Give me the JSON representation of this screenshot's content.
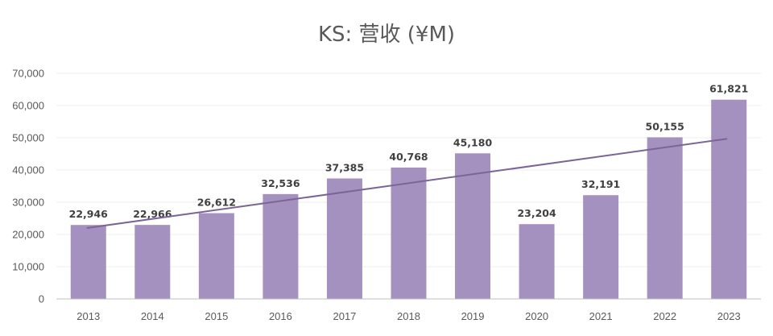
{
  "chart_data": {
    "type": "bar",
    "title": "KS: 营收 (¥M)",
    "xlabel": "",
    "ylabel": "",
    "categories": [
      "2013",
      "2014",
      "2015",
      "2016",
      "2017",
      "2018",
      "2019",
      "2020",
      "2021",
      "2022",
      "2023"
    ],
    "series": [
      {
        "name": "营收",
        "values": [
          22946,
          22966,
          26612,
          32536,
          37385,
          40768,
          45180,
          23204,
          32191,
          50155,
          61821
        ],
        "data_labels": [
          "22,946",
          "22,966",
          "26,612",
          "32,536",
          "37,385",
          "40,768",
          "45,180",
          "23,204",
          "32,191",
          "50,155",
          "61,821"
        ]
      }
    ],
    "trendline": {
      "type": "linear",
      "start_value": 22000,
      "end_value": 49700
    },
    "ylim": [
      0,
      70000
    ],
    "yticks": [
      0,
      10000,
      20000,
      30000,
      40000,
      50000,
      60000,
      70000
    ],
    "ytick_labels": [
      "0",
      "10,000",
      "20,000",
      "30,000",
      "40,000",
      "50,000",
      "60,000",
      "70,000"
    ],
    "grid": true,
    "legend": "none",
    "colors": {
      "bar": "#a591bf",
      "trendline": "#7b6597",
      "grid": "#ececec",
      "axis": "#bfbfbf"
    }
  }
}
